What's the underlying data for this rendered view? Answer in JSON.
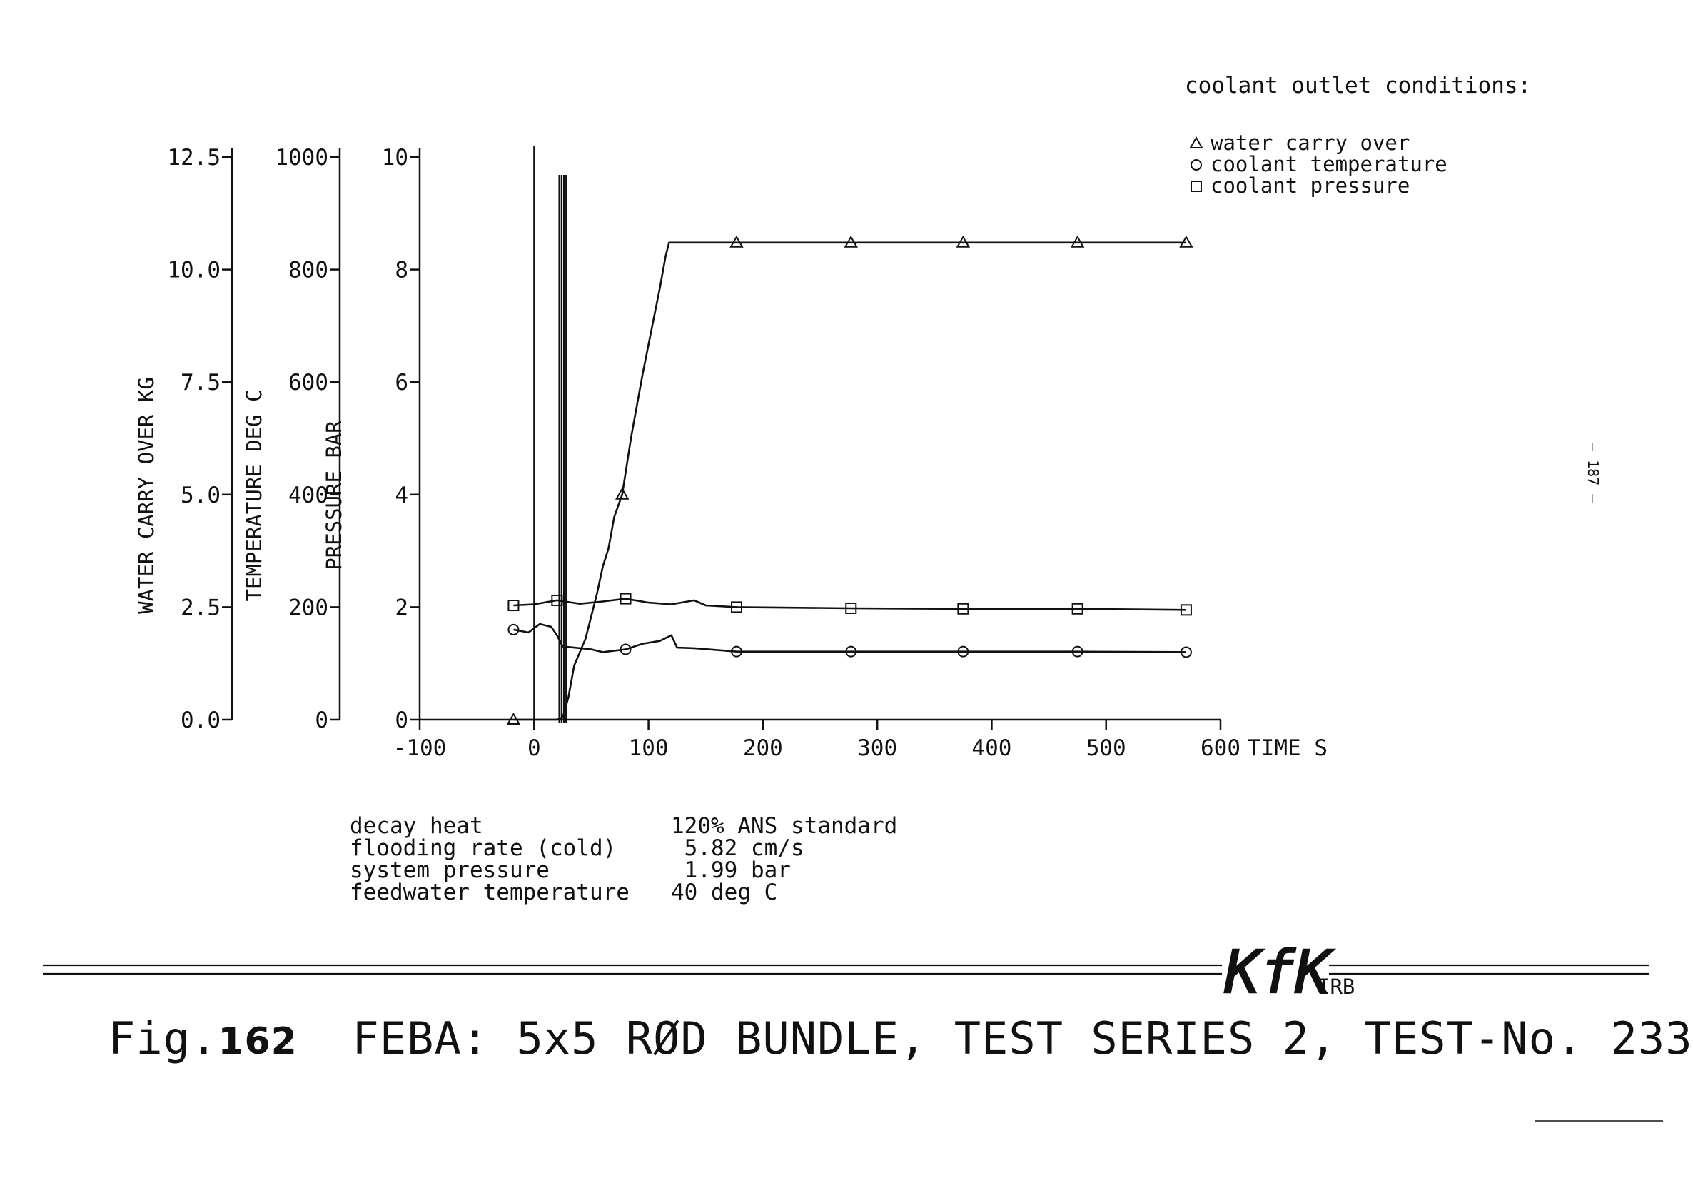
{
  "chart_data": {
    "type": "line",
    "x": {
      "label": "TIME S",
      "lim": [
        -100,
        600
      ],
      "ticks": [
        "-100",
        "0",
        "100",
        "200",
        "300",
        "400",
        "500",
        "600"
      ]
    },
    "y_axes": [
      {
        "id": "water",
        "label": "WATER CARRY OVER KG",
        "lim": [
          0,
          12.5
        ],
        "ticks": [
          "0.0",
          "2.5",
          "5.0",
          "7.5",
          "10.0",
          "12.5"
        ]
      },
      {
        "id": "temp",
        "label": "TEMPERATURE DEG C",
        "lim": [
          0,
          1000
        ],
        "ticks": [
          "0",
          "200",
          "400",
          "600",
          "800",
          "1000"
        ]
      },
      {
        "id": "pressure",
        "label": "PRESSURE BAR",
        "lim": [
          0,
          10
        ],
        "ticks": [
          "0",
          "2",
          "4",
          "6",
          "8",
          "10"
        ]
      }
    ],
    "legend_title": "coolant outlet conditions:",
    "series": [
      {
        "name": "water carry over",
        "marker": "triangle",
        "axis": "water",
        "points": [
          [
            -18,
            0
          ],
          [
            0,
            0
          ],
          [
            20,
            0
          ],
          [
            25,
            0.05
          ],
          [
            30,
            0.5
          ],
          [
            35,
            1.2
          ],
          [
            45,
            1.8
          ],
          [
            55,
            2.8
          ],
          [
            60,
            3.4
          ],
          [
            65,
            3.8
          ],
          [
            70,
            4.5
          ],
          [
            77,
            5.0
          ],
          [
            85,
            6.3
          ],
          [
            95,
            7.7
          ],
          [
            110,
            9.6
          ],
          [
            115,
            10.3
          ],
          [
            118,
            10.6
          ],
          [
            180,
            10.6
          ],
          [
            280,
            10.6
          ],
          [
            375,
            10.6
          ],
          [
            475,
            10.6
          ],
          [
            570,
            10.6
          ]
        ],
        "markers_x": [
          -18,
          77,
          177,
          277,
          375,
          475,
          570
        ]
      },
      {
        "name": "coolant temperature",
        "marker": "circle",
        "axis": "temp",
        "points": [
          [
            -18,
            160
          ],
          [
            -5,
            155
          ],
          [
            5,
            170
          ],
          [
            15,
            165
          ],
          [
            20,
            150
          ],
          [
            25,
            130
          ],
          [
            35,
            128
          ],
          [
            50,
            125
          ],
          [
            60,
            120
          ],
          [
            80,
            125
          ],
          [
            95,
            135
          ],
          [
            110,
            140
          ],
          [
            120,
            150
          ],
          [
            125,
            128
          ],
          [
            140,
            127
          ],
          [
            177,
            121
          ],
          [
            277,
            121
          ],
          [
            375,
            121
          ],
          [
            475,
            121
          ],
          [
            570,
            120
          ]
        ],
        "markers_x": [
          -18,
          80,
          177,
          277,
          375,
          475,
          570
        ]
      },
      {
        "name": "coolant pressure",
        "marker": "square",
        "axis": "pressure",
        "points": [
          [
            -18,
            2.03
          ],
          [
            0,
            2.05
          ],
          [
            20,
            2.12
          ],
          [
            40,
            2.06
          ],
          [
            60,
            2.1
          ],
          [
            80,
            2.15
          ],
          [
            100,
            2.08
          ],
          [
            120,
            2.05
          ],
          [
            140,
            2.12
          ],
          [
            150,
            2.03
          ],
          [
            177,
            2.0
          ],
          [
            277,
            1.98
          ],
          [
            375,
            1.97
          ],
          [
            475,
            1.97
          ],
          [
            570,
            1.95
          ]
        ],
        "markers_x": [
          -18,
          20,
          80,
          177,
          277,
          375,
          475,
          570
        ]
      }
    ],
    "vertical_lines_x": [
      0,
      22,
      24,
      26,
      28
    ]
  },
  "parameters": [
    {
      "label": "decay heat",
      "value": "120% ANS standard"
    },
    {
      "label": "flooding rate (cold)",
      "value": " 5.82 cm/s"
    },
    {
      "label": "system pressure",
      "value": " 1.99 bar"
    },
    {
      "label": "feedwater temperature",
      "value": "40 deg C"
    }
  ],
  "logo": {
    "text": "KfK",
    "suffix": "IRB"
  },
  "caption": {
    "fig_prefix": "Fig.",
    "fig_number": "162",
    "title": "FEBA: 5x5 RØD BUNDLE, TEST SERIES 2, TEST-No. 233"
  },
  "page_number": "— 187 —"
}
